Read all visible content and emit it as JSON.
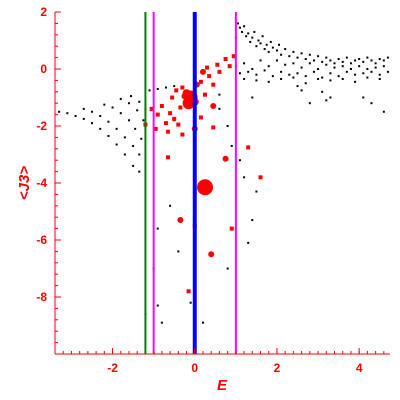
{
  "chart_data": {
    "type": "scatter",
    "xlabel": "E",
    "ylabel": "<J3>",
    "xlim": [
      -3.4,
      4.75
    ],
    "ylim": [
      -10,
      2
    ],
    "xticks": [
      -2,
      0,
      2,
      4
    ],
    "yticks": [
      -8,
      -6,
      -4,
      -2,
      0,
      2
    ],
    "grid": false,
    "colors": {
      "axis": "#ff0000",
      "points": "#000000",
      "highlight": "#ff0000",
      "green_line": "#008000",
      "magenta_line": "#ff00ff",
      "blue_line": "#0000ff"
    },
    "vertical_lines": [
      {
        "x": -1.2,
        "color": "#008000",
        "width": 2
      },
      {
        "x": -1.0,
        "color": "#ff00ff",
        "width": 2
      },
      {
        "x": 0.0,
        "color": "#0000ff",
        "width": 4
      },
      {
        "x": 1.0,
        "color": "#ff00ff",
        "width": 2
      }
    ],
    "black_points": [
      [
        -3.3,
        -1.5
      ],
      [
        -3.1,
        -1.55
      ],
      [
        -2.9,
        -1.65
      ],
      [
        -2.7,
        -1.75
      ],
      [
        -2.5,
        -1.9
      ],
      [
        -2.3,
        -2.1
      ],
      [
        -2.1,
        -2.35
      ],
      [
        -1.9,
        -2.65
      ],
      [
        -1.7,
        -3.0
      ],
      [
        -1.5,
        -3.4
      ],
      [
        -1.35,
        -3.6
      ],
      [
        -2.7,
        -1.4
      ],
      [
        -2.5,
        -1.5
      ],
      [
        -2.3,
        -1.65
      ],
      [
        -2.1,
        -1.85
      ],
      [
        -1.9,
        -2.1
      ],
      [
        -1.7,
        -2.4
      ],
      [
        -1.5,
        -2.7
      ],
      [
        -1.35,
        -3.0
      ],
      [
        -2.2,
        -1.25
      ],
      [
        -2.0,
        -1.35
      ],
      [
        -1.8,
        -1.55
      ],
      [
        -1.6,
        -1.8
      ],
      [
        -1.45,
        -2.1
      ],
      [
        -1.3,
        -2.45
      ],
      [
        -1.8,
        -1.05
      ],
      [
        -1.6,
        -1.2
      ],
      [
        -1.4,
        -1.45
      ],
      [
        -1.25,
        -1.8
      ],
      [
        -1.55,
        -0.95
      ],
      [
        -1.35,
        -1.15
      ],
      [
        -1.2,
        -1.4
      ],
      [
        -1.1,
        -0.75
      ],
      [
        -0.9,
        -0.7
      ],
      [
        -0.7,
        -0.65
      ],
      [
        -0.5,
        -0.6
      ],
      [
        1.0,
        1.1
      ],
      [
        1.05,
        1.6
      ],
      [
        1.1,
        1.45
      ],
      [
        1.15,
        1.3
      ],
      [
        1.2,
        1.5
      ],
      [
        1.25,
        1.15
      ],
      [
        1.3,
        1.25
      ],
      [
        1.35,
        0.95
      ],
      [
        1.4,
        1.1
      ],
      [
        1.45,
        1.3
      ],
      [
        1.5,
        0.8
      ],
      [
        1.55,
        1.0
      ],
      [
        1.6,
        0.9
      ],
      [
        1.65,
        1.15
      ],
      [
        1.7,
        0.7
      ],
      [
        1.75,
        0.85
      ],
      [
        1.8,
        0.6
      ],
      [
        1.85,
        0.95
      ],
      [
        1.9,
        0.75
      ],
      [
        2.0,
        0.65
      ],
      [
        2.05,
        0.85
      ],
      [
        2.1,
        0.5
      ],
      [
        2.2,
        0.7
      ],
      [
        2.3,
        0.45
      ],
      [
        2.4,
        0.6
      ],
      [
        2.5,
        0.4
      ],
      [
        2.6,
        0.55
      ],
      [
        2.7,
        0.35
      ],
      [
        2.8,
        0.5
      ],
      [
        2.9,
        0.3
      ],
      [
        3.0,
        0.45
      ],
      [
        3.1,
        0.25
      ],
      [
        3.2,
        0.4
      ],
      [
        3.3,
        0.3
      ],
      [
        3.4,
        0.2
      ],
      [
        3.5,
        0.35
      ],
      [
        3.6,
        0.25
      ],
      [
        3.7,
        0.4
      ],
      [
        3.8,
        0.2
      ],
      [
        3.9,
        0.3
      ],
      [
        4.0,
        0.35
      ],
      [
        4.1,
        0.25
      ],
      [
        4.2,
        0.4
      ],
      [
        4.3,
        0.3
      ],
      [
        4.4,
        0.2
      ],
      [
        4.5,
        0.35
      ],
      [
        4.6,
        0.3
      ],
      [
        4.7,
        0.4
      ],
      [
        1.0,
        0.1
      ],
      [
        1.2,
        0.2
      ],
      [
        1.4,
        0.0
      ],
      [
        1.6,
        0.3
      ],
      [
        1.8,
        0.1
      ],
      [
        2.0,
        0.3
      ],
      [
        2.2,
        0.15
      ],
      [
        2.4,
        0.2
      ],
      [
        2.6,
        0.05
      ],
      [
        2.8,
        0.2
      ],
      [
        3.0,
        0.0
      ],
      [
        3.2,
        0.15
      ],
      [
        3.4,
        0.05
      ],
      [
        3.6,
        0.1
      ],
      [
        3.8,
        0.0
      ],
      [
        4.0,
        0.1
      ],
      [
        4.2,
        0.0
      ],
      [
        4.4,
        0.05
      ],
      [
        4.6,
        0.1
      ],
      [
        1.1,
        -0.15
      ],
      [
        1.3,
        -0.1
      ],
      [
        1.5,
        -0.2
      ],
      [
        1.7,
        -0.05
      ],
      [
        1.9,
        -0.25
      ],
      [
        2.1,
        -0.1
      ],
      [
        2.3,
        -0.2
      ],
      [
        2.5,
        -0.15
      ],
      [
        2.7,
        -0.25
      ],
      [
        2.9,
        -0.1
      ],
      [
        3.1,
        -0.3
      ],
      [
        3.3,
        -0.15
      ],
      [
        3.5,
        -0.25
      ],
      [
        3.7,
        -0.1
      ],
      [
        3.9,
        -0.2
      ],
      [
        4.1,
        -0.15
      ],
      [
        4.3,
        -0.1
      ],
      [
        4.5,
        -0.2
      ],
      [
        4.7,
        -0.1
      ],
      [
        1.2,
        -0.35
      ],
      [
        1.5,
        -0.4
      ],
      [
        1.8,
        -0.45
      ],
      [
        2.1,
        -0.35
      ],
      [
        2.4,
        -0.3
      ],
      [
        2.7,
        -0.5
      ],
      [
        3.0,
        -0.35
      ],
      [
        3.3,
        -0.4
      ],
      [
        3.6,
        -0.35
      ],
      [
        3.9,
        -0.45
      ],
      [
        4.2,
        -0.3
      ],
      [
        4.5,
        -0.35
      ],
      [
        2.5,
        -0.6
      ],
      [
        2.6,
        -0.75
      ],
      [
        3.1,
        -0.8
      ],
      [
        3.3,
        -1.0
      ],
      [
        2.8,
        -1.2
      ],
      [
        4.1,
        -1.0
      ],
      [
        4.3,
        -1.2
      ],
      [
        4.6,
        -1.5
      ],
      [
        3.2,
        -1.1
      ],
      [
        1.4,
        -1.0
      ],
      [
        0.6,
        -0.9
      ],
      [
        0.6,
        -1.4
      ],
      [
        0.8,
        -2.0
      ],
      [
        0.9,
        -2.7
      ],
      [
        1.1,
        -3.2
      ],
      [
        1.2,
        -3.8
      ],
      [
        1.5,
        -4.3
      ],
      [
        1.4,
        -5.3
      ],
      [
        1.3,
        -6.1
      ],
      [
        -0.9,
        -5.6
      ],
      [
        -1.0,
        -7.0
      ],
      [
        -0.9,
        -8.3
      ],
      [
        -1.2,
        -8.6
      ],
      [
        -0.8,
        -8.9
      ],
      [
        -0.6,
        -4.8
      ],
      [
        -0.5,
        -1.8
      ],
      [
        0.2,
        -8.9
      ],
      [
        -0.1,
        -8.2
      ],
      [
        -0.4,
        -6.4
      ],
      [
        0.8,
        -7.0
      ]
    ],
    "red_points": [
      [
        -0.2,
        -0.85,
        4
      ],
      [
        -0.1,
        -1.0,
        7
      ],
      [
        -0.15,
        -1.2,
        6
      ],
      [
        0.0,
        -1.15,
        4
      ],
      [
        -0.25,
        -0.95,
        3
      ],
      [
        0.05,
        -0.55,
        3
      ],
      [
        0.15,
        -0.45,
        2
      ],
      [
        0.2,
        -0.1,
        3
      ],
      [
        0.3,
        0.05,
        2
      ],
      [
        0.35,
        -0.25,
        2
      ],
      [
        0.45,
        -0.55,
        2
      ],
      [
        0.55,
        0.15,
        2
      ],
      [
        0.75,
        0.35,
        2
      ],
      [
        0.95,
        0.45,
        2
      ],
      [
        0.85,
        0.1,
        2
      ],
      [
        0.6,
        -0.1,
        2
      ],
      [
        -0.3,
        -0.65,
        2
      ],
      [
        -0.45,
        -0.75,
        2
      ],
      [
        -0.55,
        -1.0,
        2
      ],
      [
        -0.35,
        -1.35,
        2
      ],
      [
        -0.6,
        -1.55,
        2
      ],
      [
        -0.5,
        -1.75,
        2
      ],
      [
        -0.8,
        -1.3,
        2
      ],
      [
        -0.9,
        -1.6,
        2
      ],
      [
        -0.7,
        -1.9,
        2
      ],
      [
        -0.4,
        -1.95,
        2
      ],
      [
        -0.3,
        -2.3,
        2
      ],
      [
        -0.65,
        -2.2,
        2
      ],
      [
        -1.05,
        -1.4,
        2
      ],
      [
        -1.2,
        -1.95,
        2
      ],
      [
        -0.95,
        -2.1,
        2
      ],
      [
        0.0,
        -2.1,
        3
      ],
      [
        0.45,
        -1.3,
        3
      ],
      [
        0.25,
        -0.9,
        2
      ],
      [
        0.15,
        -1.7,
        2
      ],
      [
        0.45,
        -2.05,
        2
      ],
      [
        0.75,
        -3.15,
        3
      ],
      [
        1.3,
        -2.75,
        2
      ],
      [
        1.6,
        -3.8,
        2
      ],
      [
        0.25,
        -4.15,
        8
      ],
      [
        -0.35,
        -5.3,
        3
      ],
      [
        0.0,
        -5.5,
        2
      ],
      [
        0.4,
        -6.5,
        3
      ],
      [
        0.9,
        -5.6,
        2
      ],
      [
        -0.15,
        -7.8,
        2
      ],
      [
        -0.65,
        -3.1,
        2
      ]
    ]
  }
}
